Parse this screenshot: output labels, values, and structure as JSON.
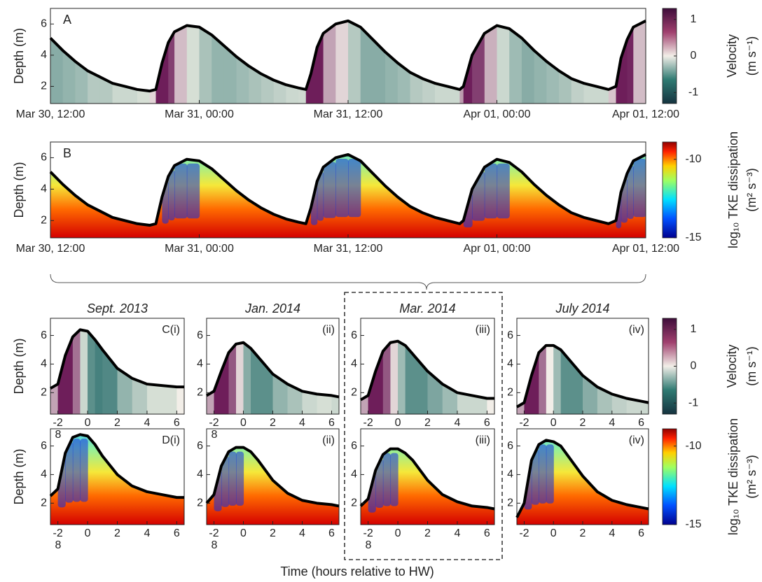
{
  "xlabel": "Time (hours relative to HW)",
  "chart_data": [
    {
      "type": "line",
      "panel_label": "A",
      "ylabel": "Depth  (m)",
      "colormap": "velocity",
      "xlim": [
        0,
        48
      ],
      "ylim": [
        0.9,
        7
      ],
      "yticks": [
        2,
        4,
        6
      ],
      "xticks": [
        {
          "value": 0,
          "label": "Mar 30, 12:00"
        },
        {
          "value": 12,
          "label": "Mar 31, 00:00"
        },
        {
          "value": 24,
          "label": "Mar 31, 12:00"
        },
        {
          "value": 36,
          "label": "Apr 01, 00:00"
        },
        {
          "value": 48,
          "label": "Apr 01, 12:00"
        }
      ],
      "x": [
        0,
        1,
        2,
        3,
        4,
        5,
        6,
        7,
        8,
        8.5,
        9,
        9.5,
        10,
        11,
        12,
        13,
        14,
        15,
        16,
        17,
        18,
        19,
        20,
        20.6,
        21,
        21.5,
        22,
        23,
        24,
        25,
        26,
        27,
        28,
        29,
        30,
        31,
        32,
        33,
        33.3,
        34,
        35,
        36,
        37,
        38,
        39,
        40,
        41,
        42,
        43,
        44,
        45,
        45.6,
        46,
        46.5,
        47,
        48
      ],
      "series": [
        {
          "color": "#000000",
          "values": [
            5.1,
            4.3,
            3.6,
            3.0,
            2.6,
            2.2,
            2.0,
            1.8,
            1.7,
            1.8,
            3.5,
            4.8,
            5.5,
            5.9,
            5.8,
            5.3,
            4.6,
            3.9,
            3.3,
            2.8,
            2.4,
            2.1,
            1.9,
            1.8,
            2.8,
            4.5,
            5.4,
            6.0,
            6.2,
            5.8,
            5.0,
            4.2,
            3.5,
            2.9,
            2.5,
            2.2,
            2.0,
            1.8,
            2.0,
            4.0,
            5.4,
            5.9,
            5.7,
            5.1,
            4.3,
            3.6,
            3.0,
            2.5,
            2.2,
            2.0,
            1.8,
            2.0,
            3.8,
            5.0,
            5.8,
            6.2
          ]
        }
      ],
      "colorbar": {
        "label": "Velocity",
        "unit": "(m s⁻¹)",
        "clim": [
          -1.3,
          1.3
        ],
        "ticks": [
          1,
          0,
          -1
        ]
      }
    },
    {
      "type": "line",
      "panel_label": "B",
      "ylabel": "Depth  (m)",
      "colormap": "dissipation",
      "xlim": [
        0,
        48
      ],
      "ylim": [
        0.9,
        7
      ],
      "yticks": [
        2,
        4,
        6
      ],
      "xticks": [
        {
          "value": 0,
          "label": "Mar 30, 12:00"
        },
        {
          "value": 12,
          "label": "Mar 31, 00:00"
        },
        {
          "value": 24,
          "label": "Mar 31, 12:00"
        },
        {
          "value": 36,
          "label": "Apr 01, 00:00"
        },
        {
          "value": 48,
          "label": "Apr 01, 12:00"
        }
      ],
      "x": [
        0,
        1,
        2,
        3,
        4,
        5,
        6,
        7,
        8,
        8.5,
        9,
        9.5,
        10,
        11,
        12,
        13,
        14,
        15,
        16,
        17,
        18,
        19,
        20,
        20.6,
        21,
        21.5,
        22,
        23,
        24,
        25,
        26,
        27,
        28,
        29,
        30,
        31,
        32,
        33,
        33.3,
        34,
        35,
        36,
        37,
        38,
        39,
        40,
        41,
        42,
        43,
        44,
        45,
        45.6,
        46,
        46.5,
        47,
        48
      ],
      "series": [
        {
          "color": "#000000",
          "values": [
            5.1,
            4.3,
            3.6,
            3.0,
            2.6,
            2.2,
            2.0,
            1.8,
            1.7,
            1.8,
            3.5,
            4.8,
            5.5,
            5.9,
            5.8,
            5.3,
            4.6,
            3.9,
            3.3,
            2.8,
            2.4,
            2.1,
            1.9,
            1.8,
            2.8,
            4.5,
            5.4,
            6.0,
            6.2,
            5.8,
            5.0,
            4.2,
            3.5,
            2.9,
            2.5,
            2.2,
            2.0,
            1.8,
            2.0,
            4.0,
            5.4,
            5.9,
            5.7,
            5.1,
            4.3,
            3.6,
            3.0,
            2.5,
            2.2,
            2.0,
            1.8,
            2.0,
            3.8,
            5.0,
            5.8,
            6.2
          ]
        }
      ],
      "colorbar": {
        "label": "log₁₀ TKE dissipation",
        "unit": "(m² s⁻³)",
        "clim": [
          -15,
          -8.9
        ],
        "ticks": [
          -10,
          -15
        ]
      }
    },
    {
      "type": "line",
      "title": "Sept. 2013",
      "panel_label": "C(i)",
      "ylabel": "Depth (m)",
      "colormap": "velocity",
      "xlim": [
        -2.5,
        6.5
      ],
      "ylim": [
        0.5,
        7.2
      ],
      "yticks": [
        2,
        4,
        6
      ],
      "xticks": [
        -2,
        0,
        2,
        4,
        6
      ],
      "xtick_extra": "8",
      "x": [
        -2.5,
        -2,
        -1.5,
        -1,
        -0.5,
        0,
        0.5,
        1,
        2,
        3,
        4,
        5,
        6,
        6.5
      ],
      "series": [
        {
          "color": "#000000",
          "values": [
            2.3,
            2.6,
            4.6,
            5.9,
            6.4,
            6.3,
            5.7,
            5.0,
            3.7,
            3.0,
            2.6,
            2.5,
            2.4,
            2.4
          ]
        }
      ]
    },
    {
      "type": "line",
      "title": "Jan. 2014",
      "panel_label": "(ii)",
      "colormap": "velocity",
      "xlim": [
        -2.5,
        6.5
      ],
      "ylim": [
        0.5,
        7.2
      ],
      "yticks": [
        2,
        4,
        6
      ],
      "xticks": [
        -2,
        0,
        2,
        4,
        6
      ],
      "xtick_extra": "8",
      "x": [
        -2.5,
        -2,
        -1.5,
        -1,
        -0.5,
        0,
        0.5,
        1,
        2,
        3,
        4,
        5,
        6,
        6.5
      ],
      "series": [
        {
          "color": "#000000",
          "values": [
            1.8,
            2.1,
            3.5,
            4.8,
            5.4,
            5.5,
            5.1,
            4.5,
            3.3,
            2.6,
            2.1,
            1.9,
            1.8,
            1.7
          ]
        }
      ]
    },
    {
      "type": "line",
      "title": "Mar. 2014",
      "panel_label": "(iii)",
      "colormap": "velocity",
      "xlim": [
        -2.5,
        6.5
      ],
      "ylim": [
        0.5,
        7.2
      ],
      "yticks": [
        2,
        4,
        6
      ],
      "xticks": [
        -2,
        0,
        2,
        4,
        6
      ],
      "x": [
        -2.5,
        -2,
        -1.5,
        -1,
        -0.5,
        0,
        0.5,
        1,
        2,
        3,
        4,
        5,
        6,
        6.5
      ],
      "series": [
        {
          "color": "#000000",
          "values": [
            1.5,
            1.8,
            3.5,
            4.9,
            5.5,
            5.6,
            5.3,
            4.7,
            3.5,
            2.6,
            2.0,
            1.8,
            1.6,
            1.6
          ]
        }
      ]
    },
    {
      "type": "line",
      "title": "July 2014",
      "panel_label": "(iv)",
      "colormap": "velocity",
      "xlim": [
        -2.5,
        6.5
      ],
      "ylim": [
        0.5,
        7.2
      ],
      "yticks": [
        2,
        4,
        6
      ],
      "xticks": [
        -2,
        0,
        2,
        4,
        6
      ],
      "x": [
        -2.5,
        -2,
        -1.5,
        -1,
        -0.5,
        0,
        0.5,
        1,
        2,
        3,
        4,
        5,
        6,
        6.5
      ],
      "series": [
        {
          "color": "#000000",
          "values": [
            1.0,
            1.3,
            3.2,
            4.8,
            5.3,
            5.3,
            5.0,
            4.4,
            3.2,
            2.4,
            1.9,
            1.6,
            1.4,
            1.3
          ]
        }
      ],
      "colorbar": {
        "label": "Velocity",
        "unit": "(m s⁻¹)",
        "clim": [
          -1.3,
          1.3
        ],
        "ticks": [
          1,
          0,
          -1
        ]
      }
    },
    {
      "type": "line",
      "panel_label": "D(i)",
      "ylabel": "Depth (m)",
      "colormap": "dissipation",
      "xlim": [
        -2.5,
        6.5
      ],
      "ylim": [
        0.5,
        7.2
      ],
      "yticks": [
        2,
        4,
        6
      ],
      "xticks": [
        -2,
        0,
        2,
        4,
        6
      ],
      "xtick_extra": "8",
      "x": [
        -2.5,
        -2,
        -1.5,
        -1,
        -0.5,
        0,
        0.5,
        1,
        2,
        3,
        4,
        5,
        6,
        6.5
      ],
      "series": [
        {
          "color": "#000000",
          "values": [
            2.5,
            3.0,
            5.5,
            6.6,
            6.8,
            6.7,
            6.1,
            5.3,
            4.0,
            3.2,
            2.8,
            2.6,
            2.4,
            2.4
          ]
        }
      ]
    },
    {
      "type": "line",
      "panel_label": "(ii)",
      "colormap": "dissipation",
      "xlim": [
        -2.5,
        6.5
      ],
      "ylim": [
        0.5,
        7.2
      ],
      "yticks": [
        2,
        4,
        6
      ],
      "xticks": [
        -2,
        0,
        2,
        4,
        6
      ],
      "xtick_extra": "8",
      "x": [
        -2.5,
        -2,
        -1.5,
        -1,
        -0.5,
        0,
        0.5,
        1,
        2,
        3,
        4,
        5,
        6,
        6.5
      ],
      "series": [
        {
          "color": "#000000",
          "values": [
            2.0,
            2.6,
            4.6,
            5.6,
            5.9,
            5.9,
            5.6,
            5.0,
            3.6,
            2.7,
            2.2,
            2.0,
            1.9,
            1.8
          ]
        }
      ]
    },
    {
      "type": "line",
      "panel_label": "(iii)",
      "colormap": "dissipation",
      "xlim": [
        -2.5,
        6.5
      ],
      "ylim": [
        0.5,
        7.2
      ],
      "yticks": [
        2,
        4,
        6
      ],
      "xticks": [
        -2,
        0,
        2,
        4,
        6
      ],
      "xtick_extra": "8",
      "x": [
        -2.5,
        -2,
        -1.5,
        -1,
        -0.5,
        0,
        0.5,
        1,
        2,
        3,
        4,
        5,
        6,
        6.5
      ],
      "series": [
        {
          "color": "#000000",
          "values": [
            1.8,
            2.3,
            4.3,
            5.4,
            5.8,
            5.8,
            5.5,
            5.0,
            3.6,
            2.6,
            2.1,
            1.8,
            1.7,
            1.6
          ]
        }
      ]
    },
    {
      "type": "line",
      "panel_label": "(iv)",
      "colormap": "dissipation",
      "xlim": [
        -2.5,
        6.5
      ],
      "ylim": [
        0.5,
        7.2
      ],
      "yticks": [
        2,
        4,
        6
      ],
      "xticks": [
        -2,
        0,
        2,
        4,
        6
      ],
      "x": [
        -2.5,
        -2,
        -1.5,
        -1,
        -0.5,
        0,
        0.5,
        1,
        2,
        3,
        4,
        5,
        6,
        6.5
      ],
      "series": [
        {
          "color": "#000000",
          "values": [
            1.0,
            2.0,
            5.0,
            6.1,
            6.4,
            6.3,
            6.0,
            5.3,
            3.9,
            2.8,
            2.2,
            1.9,
            1.7,
            1.6
          ]
        }
      ],
      "colorbar": {
        "label": "log₁₀ TKE dissipation",
        "unit": "(m² s⁻³)",
        "clim": [
          -15,
          -8.9
        ],
        "ticks": [
          -10,
          -15
        ]
      }
    }
  ]
}
